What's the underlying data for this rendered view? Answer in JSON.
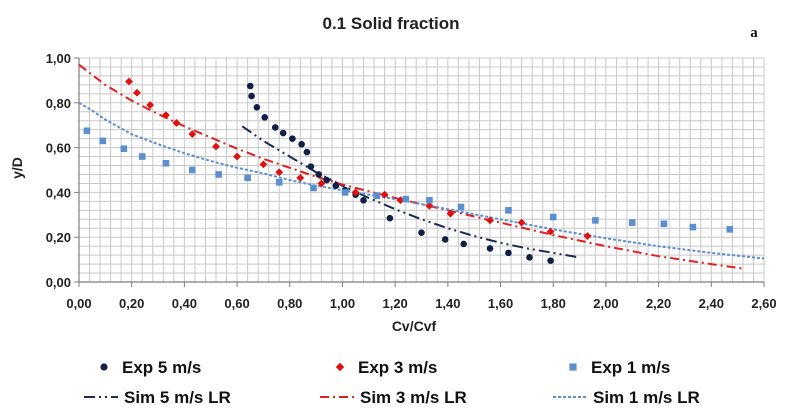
{
  "chart_data": {
    "type": "scatter",
    "title": "0.1 Solid fraction",
    "panel_label": "a",
    "xlabel": "Cv/Cvf",
    "ylabel": "y/D",
    "xlim": [
      0,
      2.6
    ],
    "ylim": [
      0,
      1.0
    ],
    "x_ticks": [
      "0,00",
      "0,20",
      "0,40",
      "0,60",
      "0,80",
      "1,00",
      "1,20",
      "1,40",
      "1,60",
      "1,80",
      "2,00",
      "2,20",
      "2,40",
      "2,60"
    ],
    "y_ticks": [
      "0,00",
      "0,20",
      "0,40",
      "0,60",
      "0,80",
      "1,00"
    ],
    "grid": true,
    "legend_position": "bottom",
    "series": [
      {
        "name": "Exp 5 m/s",
        "kind": "points",
        "marker": "circle",
        "color": "#0f1f45",
        "points": [
          [
            0.65,
            0.875
          ],
          [
            0.655,
            0.83
          ],
          [
            0.675,
            0.78
          ],
          [
            0.705,
            0.735
          ],
          [
            0.745,
            0.69
          ],
          [
            0.775,
            0.665
          ],
          [
            0.81,
            0.64
          ],
          [
            0.845,
            0.615
          ],
          [
            0.865,
            0.58
          ],
          [
            0.88,
            0.515
          ],
          [
            0.91,
            0.48
          ],
          [
            0.94,
            0.455
          ],
          [
            0.975,
            0.43
          ],
          [
            1.01,
            0.41
          ],
          [
            1.05,
            0.39
          ],
          [
            1.08,
            0.365
          ],
          [
            1.18,
            0.285
          ],
          [
            1.3,
            0.22
          ],
          [
            1.39,
            0.19
          ],
          [
            1.46,
            0.17
          ],
          [
            1.56,
            0.15
          ],
          [
            1.63,
            0.13
          ],
          [
            1.71,
            0.11
          ],
          [
            1.79,
            0.095
          ]
        ]
      },
      {
        "name": "Exp 3 m/s",
        "kind": "points",
        "marker": "diamond",
        "color": "#e01010",
        "points": [
          [
            0.19,
            0.895
          ],
          [
            0.22,
            0.845
          ],
          [
            0.27,
            0.79
          ],
          [
            0.33,
            0.745
          ],
          [
            0.37,
            0.71
          ],
          [
            0.43,
            0.66
          ],
          [
            0.52,
            0.605
          ],
          [
            0.6,
            0.56
          ],
          [
            0.7,
            0.525
          ],
          [
            0.76,
            0.49
          ],
          [
            0.84,
            0.465
          ],
          [
            0.92,
            0.44
          ],
          [
            1.05,
            0.4
          ],
          [
            1.16,
            0.39
          ],
          [
            1.22,
            0.365
          ],
          [
            1.33,
            0.34
          ],
          [
            1.41,
            0.305
          ],
          [
            1.56,
            0.275
          ],
          [
            1.68,
            0.265
          ],
          [
            1.79,
            0.225
          ],
          [
            1.93,
            0.205
          ]
        ]
      },
      {
        "name": "Exp 1 m/s",
        "kind": "points",
        "marker": "square",
        "color": "#5b8fd0",
        "points": [
          [
            0.03,
            0.675
          ],
          [
            0.09,
            0.63
          ],
          [
            0.17,
            0.595
          ],
          [
            0.24,
            0.56
          ],
          [
            0.33,
            0.53
          ],
          [
            0.43,
            0.5
          ],
          [
            0.53,
            0.48
          ],
          [
            0.64,
            0.465
          ],
          [
            0.76,
            0.445
          ],
          [
            0.89,
            0.42
          ],
          [
            1.01,
            0.4
          ],
          [
            1.13,
            0.385
          ],
          [
            1.24,
            0.37
          ],
          [
            1.33,
            0.365
          ],
          [
            1.45,
            0.335
          ],
          [
            1.63,
            0.32
          ],
          [
            1.8,
            0.29
          ],
          [
            1.96,
            0.275
          ],
          [
            2.1,
            0.265
          ],
          [
            2.22,
            0.26
          ],
          [
            2.33,
            0.245
          ],
          [
            2.47,
            0.235
          ]
        ]
      },
      {
        "name": "Sim 5 m/s LR",
        "kind": "line",
        "dash": "dashdotdot",
        "color": "#1a2a55",
        "points": [
          [
            0.62,
            0.695
          ],
          [
            0.7,
            0.63
          ],
          [
            0.8,
            0.56
          ],
          [
            0.9,
            0.49
          ],
          [
            1.0,
            0.43
          ],
          [
            1.1,
            0.375
          ],
          [
            1.2,
            0.325
          ],
          [
            1.3,
            0.28
          ],
          [
            1.4,
            0.24
          ],
          [
            1.5,
            0.205
          ],
          [
            1.6,
            0.175
          ],
          [
            1.7,
            0.15
          ],
          [
            1.8,
            0.13
          ],
          [
            1.9,
            0.11
          ]
        ]
      },
      {
        "name": "Sim 3 m/s LR",
        "kind": "line",
        "dash": "dashdot",
        "color": "#e02020",
        "points": [
          [
            0.0,
            0.97
          ],
          [
            0.1,
            0.88
          ],
          [
            0.2,
            0.81
          ],
          [
            0.3,
            0.75
          ],
          [
            0.4,
            0.695
          ],
          [
            0.5,
            0.645
          ],
          [
            0.6,
            0.595
          ],
          [
            0.7,
            0.55
          ],
          [
            0.8,
            0.51
          ],
          [
            0.9,
            0.47
          ],
          [
            1.0,
            0.435
          ],
          [
            1.2,
            0.375
          ],
          [
            1.4,
            0.32
          ],
          [
            1.6,
            0.265
          ],
          [
            1.8,
            0.21
          ],
          [
            2.0,
            0.16
          ],
          [
            2.2,
            0.115
          ],
          [
            2.4,
            0.08
          ],
          [
            2.52,
            0.06
          ]
        ]
      },
      {
        "name": "Sim 1 m/s LR",
        "kind": "line",
        "dash": "dotted",
        "color": "#5b8fd0",
        "points": [
          [
            0.0,
            0.8
          ],
          [
            0.05,
            0.765
          ],
          [
            0.1,
            0.725
          ],
          [
            0.2,
            0.66
          ],
          [
            0.3,
            0.615
          ],
          [
            0.4,
            0.575
          ],
          [
            0.5,
            0.54
          ],
          [
            0.6,
            0.51
          ],
          [
            0.7,
            0.485
          ],
          [
            0.8,
            0.455
          ],
          [
            0.9,
            0.43
          ],
          [
            1.0,
            0.41
          ],
          [
            1.2,
            0.37
          ],
          [
            1.4,
            0.325
          ],
          [
            1.6,
            0.28
          ],
          [
            1.8,
            0.235
          ],
          [
            2.0,
            0.195
          ],
          [
            2.2,
            0.16
          ],
          [
            2.4,
            0.13
          ],
          [
            2.6,
            0.105
          ]
        ]
      }
    ]
  }
}
